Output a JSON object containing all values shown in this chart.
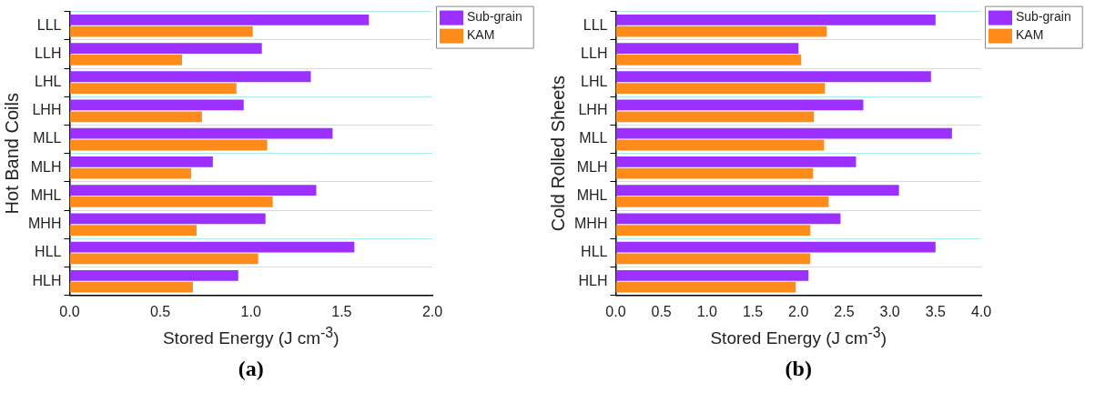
{
  "chart_data": [
    {
      "type": "bar",
      "orientation": "horizontal",
      "xlabel": "Stored Energy (J cm$^{-3}$)",
      "ylabel": "Hot Band Coils",
      "categories": [
        "LLL",
        "LLH",
        "LHL",
        "LHH",
        "MLL",
        "MLH",
        "MHL",
        "MHH",
        "HLL",
        "HLH"
      ],
      "series": [
        {
          "name": "Sub-grain",
          "color": "#9b30ff",
          "values": [
            1.65,
            1.06,
            1.33,
            0.96,
            1.45,
            0.79,
            1.36,
            1.08,
            1.57,
            0.93
          ]
        },
        {
          "name": "KAM",
          "color": "#ff8c1a",
          "values": [
            1.01,
            0.62,
            0.92,
            0.73,
            1.09,
            0.67,
            1.12,
            0.7,
            1.04,
            0.68
          ]
        }
      ],
      "xlim": [
        0,
        2
      ],
      "xticks": [
        {
          "value": 0,
          "label": "0.0"
        },
        {
          "value": 0.5,
          "label": "0.5"
        },
        {
          "value": 1,
          "label": "1.0"
        },
        {
          "value": 1.5,
          "label": "1.5"
        },
        {
          "value": 2,
          "label": "2.0"
        }
      ],
      "grid": "y",
      "legend": "top right",
      "annotations": [
        "(a)"
      ]
    },
    {
      "type": "bar",
      "orientation": "horizontal",
      "xlabel": "Stored Energy (J cm$^{-3}$)",
      "ylabel": "Cold Rolled Sheets",
      "categories": [
        "LLL",
        "LLH",
        "LHL",
        "LHH",
        "MLL",
        "MLH",
        "MHL",
        "MHH",
        "HLL",
        "HLH"
      ],
      "series": [
        {
          "name": "Sub-grain",
          "color": "#9b30ff",
          "values": [
            3.5,
            2.0,
            3.45,
            2.71,
            3.68,
            2.63,
            3.1,
            2.46,
            3.5,
            2.11
          ]
        },
        {
          "name": "KAM",
          "color": "#ff8c1a",
          "values": [
            2.31,
            2.03,
            2.29,
            2.17,
            2.28,
            2.16,
            2.33,
            2.13,
            2.13,
            1.97
          ]
        }
      ],
      "xlim": [
        0,
        4
      ],
      "xticks": [
        {
          "value": 0,
          "label": "0.0"
        },
        {
          "value": 0.5,
          "label": "0.5"
        },
        {
          "value": 1,
          "label": "1.0"
        },
        {
          "value": 1.5,
          "label": "1.5"
        },
        {
          "value": 2,
          "label": "2.0"
        },
        {
          "value": 2.5,
          "label": "2.5"
        },
        {
          "value": 3,
          "label": "3.0"
        },
        {
          "value": 3.5,
          "label": "3.5"
        },
        {
          "value": 4,
          "label": "4.0"
        }
      ],
      "grid": "y",
      "legend": "top right",
      "annotations": [
        "(b)"
      ]
    }
  ]
}
